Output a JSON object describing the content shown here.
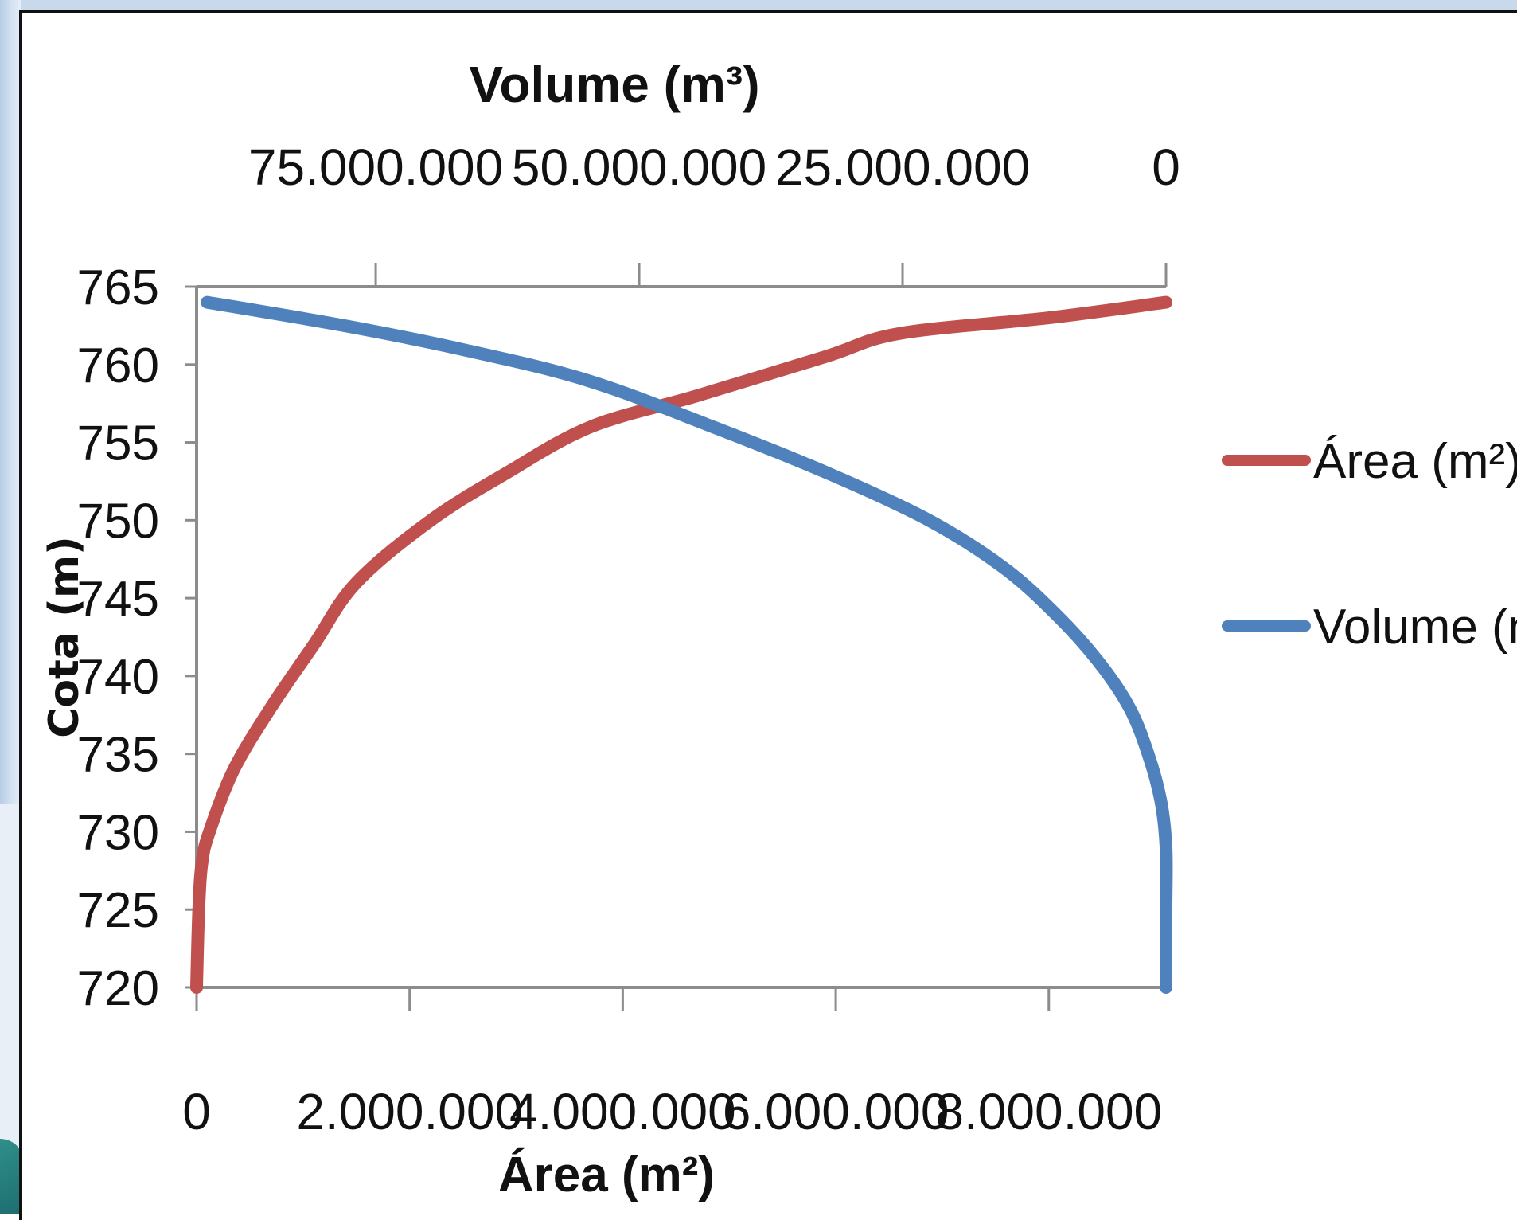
{
  "chart_data": {
    "type": "line",
    "xlabel_bottom": "Área (m²)",
    "xlabel_top": "Volume (m³)",
    "ylabel": "Cota (m)",
    "ylim": [
      720,
      765
    ],
    "yticks": [
      720,
      725,
      730,
      735,
      740,
      745,
      750,
      755,
      760,
      765
    ],
    "ytick_labels": [
      "720",
      "725",
      "730",
      "735",
      "740",
      "745",
      "750",
      "755",
      "760",
      "765"
    ],
    "xlim_bottom": [
      0,
      9100000
    ],
    "xticks_bottom": [
      0,
      2000000,
      4000000,
      6000000,
      8000000
    ],
    "xtick_labels_bottom": [
      "0",
      "2.000.000",
      "4.000.000",
      "6.000.000",
      "8.000.000"
    ],
    "xlim_top_reversed": [
      0,
      92000000
    ],
    "xticks_top": [
      75000000,
      50000000,
      25000000,
      0
    ],
    "xtick_labels_top": [
      "75.000.000",
      "50.000.000",
      "25.000.000",
      "0"
    ],
    "legend_position": "right",
    "series": [
      {
        "name": "Área (m²)",
        "color": "#c0504d",
        "axis": "bottom",
        "points": [
          {
            "x": 0,
            "y": 720
          },
          {
            "x": 20000,
            "y": 725
          },
          {
            "x": 50000,
            "y": 728
          },
          {
            "x": 120000,
            "y": 730
          },
          {
            "x": 350000,
            "y": 734
          },
          {
            "x": 700000,
            "y": 738
          },
          {
            "x": 1100000,
            "y": 742
          },
          {
            "x": 1500000,
            "y": 746
          },
          {
            "x": 2200000,
            "y": 750
          },
          {
            "x": 2900000,
            "y": 753
          },
          {
            "x": 3700000,
            "y": 756
          },
          {
            "x": 4700000,
            "y": 758
          },
          {
            "x": 5900000,
            "y": 760.5
          },
          {
            "x": 6600000,
            "y": 762
          },
          {
            "x": 8000000,
            "y": 763
          },
          {
            "x": 9100000,
            "y": 764
          }
        ]
      },
      {
        "name": "Volume (m³)",
        "color": "#4f81bd",
        "axis": "top",
        "points": [
          {
            "x": 0,
            "y": 720
          },
          {
            "x": 0,
            "y": 725
          },
          {
            "x": 0,
            "y": 729
          },
          {
            "x": 500000,
            "y": 732
          },
          {
            "x": 1700000,
            "y": 735
          },
          {
            "x": 3500000,
            "y": 738
          },
          {
            "x": 6500000,
            "y": 741
          },
          {
            "x": 10500000,
            "y": 744
          },
          {
            "x": 15500000,
            "y": 747
          },
          {
            "x": 22500000,
            "y": 750
          },
          {
            "x": 32000000,
            "y": 753
          },
          {
            "x": 43000000,
            "y": 756
          },
          {
            "x": 55000000,
            "y": 759
          },
          {
            "x": 67000000,
            "y": 761
          },
          {
            "x": 78000000,
            "y": 762.5
          },
          {
            "x": 91000000,
            "y": 764
          }
        ]
      }
    ]
  }
}
